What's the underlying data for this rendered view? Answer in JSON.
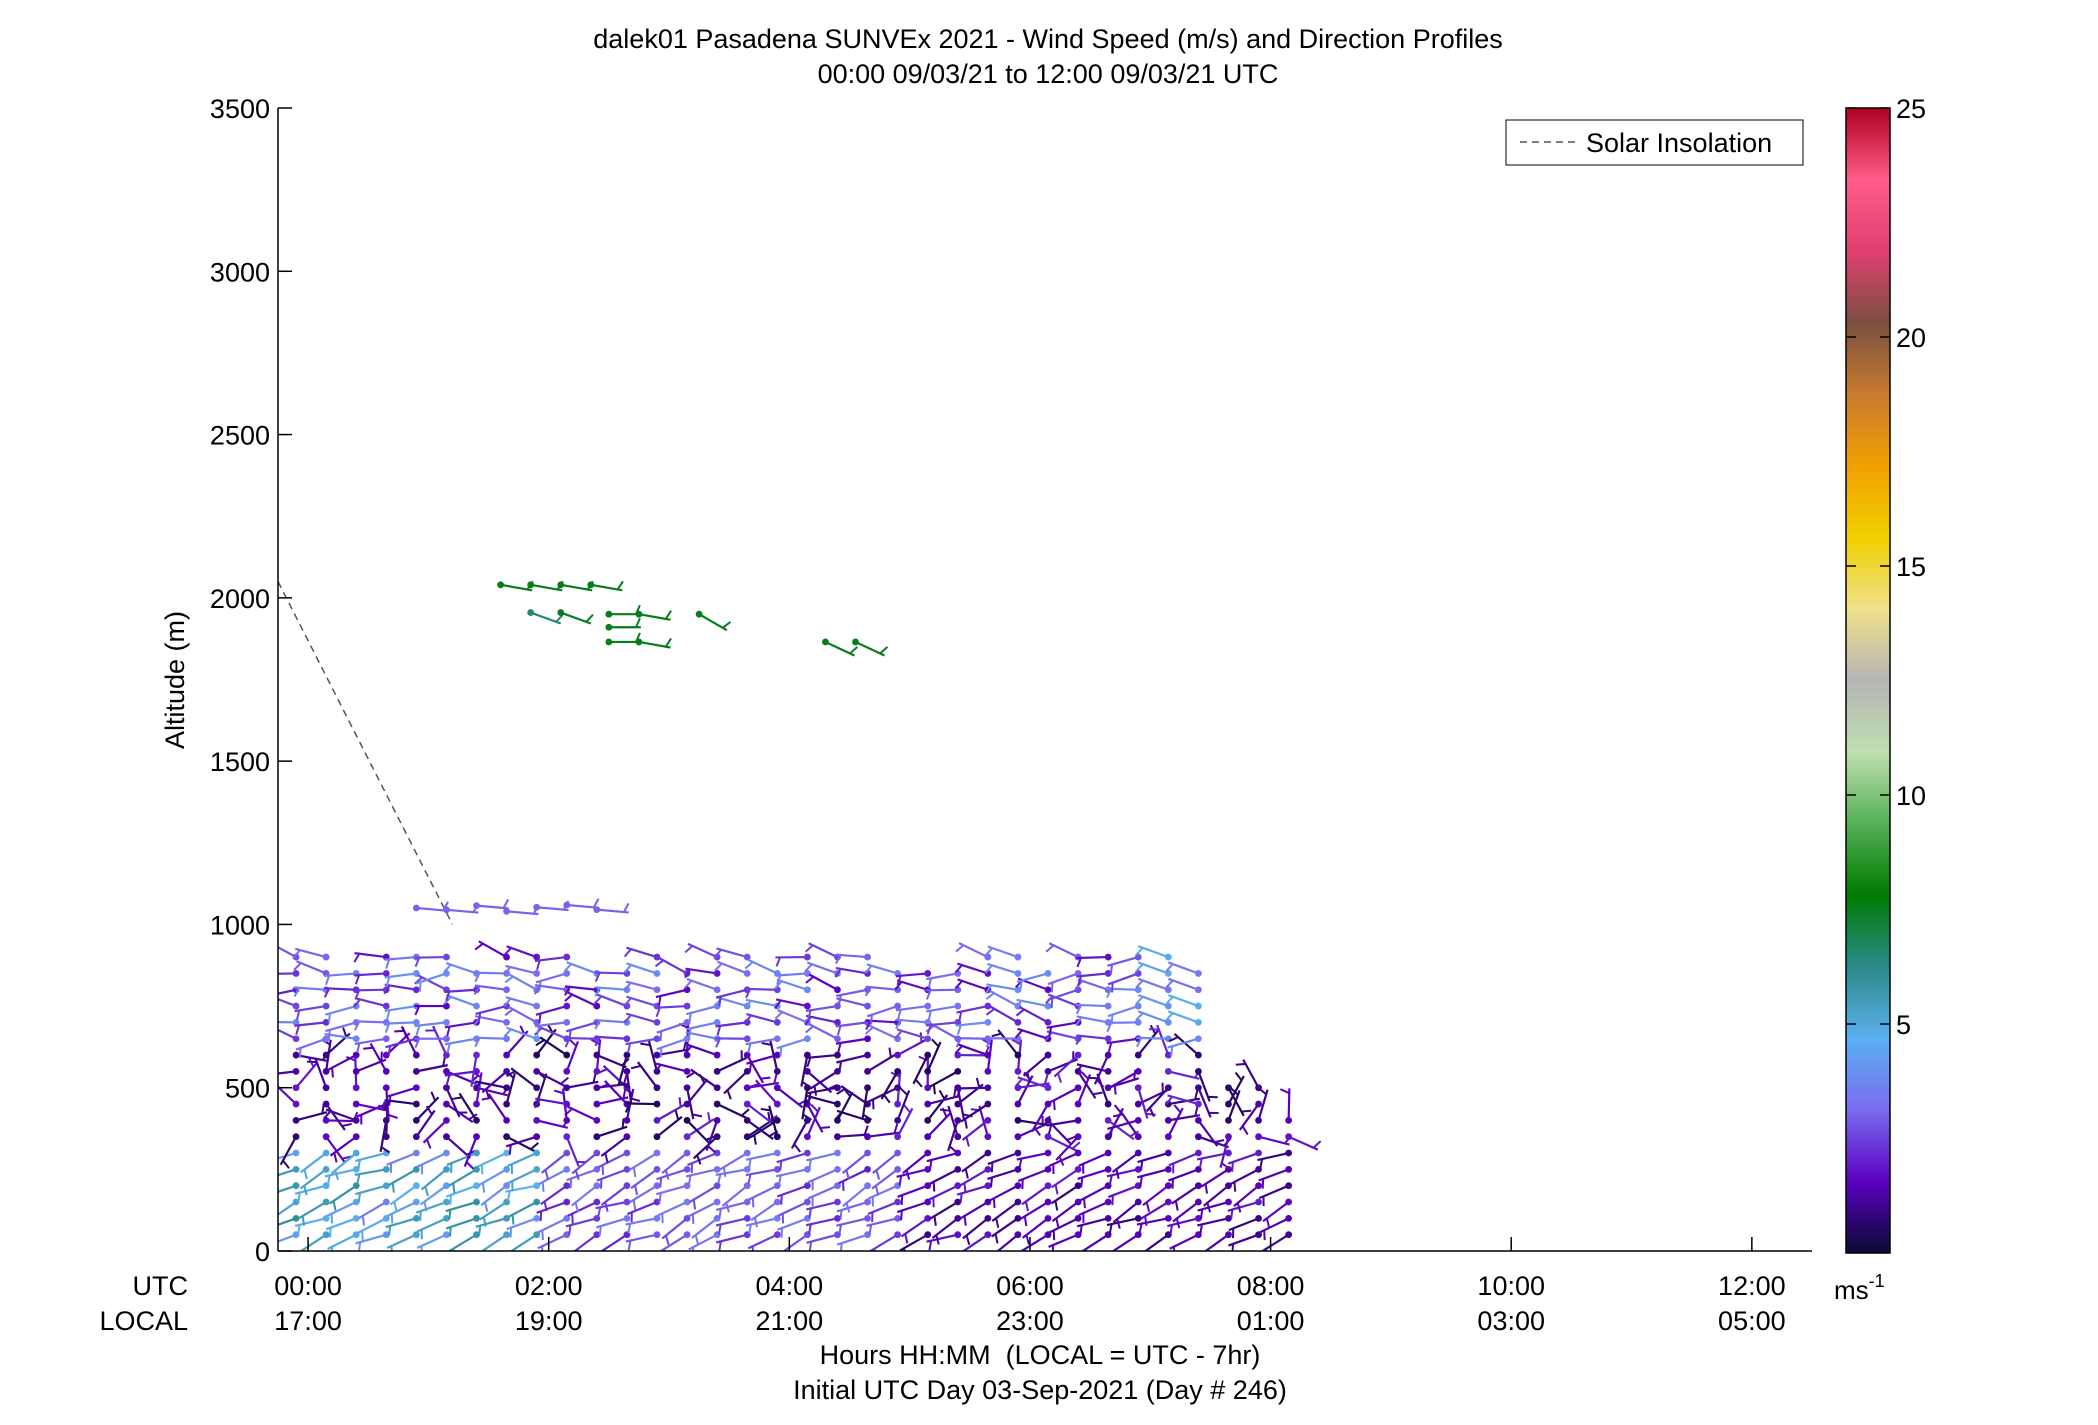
{
  "chart_data": {
    "type": "scatter",
    "subtype": "wind-barb-profile",
    "title": "dalek01 Pasadena SUNVEx 2021 - Wind Speed (m/s) and Direction Profiles",
    "subtitle": "00:00 09/03/21 to 12:00 09/03/21  UTC",
    "ylabel": "Altitude (m)",
    "xlabel": "Hours HH:MM  (LOCAL = UTC - 7hr)",
    "xlabel2": "Initial UTC Day 03-Sep-2021 (Day # 246)",
    "ylim": [
      0,
      3500
    ],
    "xlim_hours": [
      -0.25,
      12.5
    ],
    "y_ticks": [
      "0",
      "500",
      "1000",
      "1500",
      "2000",
      "2500",
      "3000",
      "3500"
    ],
    "y_tick_values": [
      0,
      500,
      1000,
      1500,
      2000,
      2500,
      3000,
      3500
    ],
    "x_tick_hours": [
      0,
      2,
      4,
      6,
      8,
      10,
      12
    ],
    "x_ticks_utc": [
      "00:00",
      "02:00",
      "04:00",
      "06:00",
      "08:00",
      "10:00",
      "12:00"
    ],
    "x_ticks_local": [
      "17:00",
      "19:00",
      "21:00",
      "23:00",
      "01:00",
      "03:00",
      "05:00"
    ],
    "x_row_label_utc": "UTC",
    "x_row_label_local": "LOCAL",
    "legend": {
      "label": "Solar Insolation",
      "placement": "top-right",
      "line_color": "#555555"
    },
    "solar_insolation": {
      "x_hours": [
        -0.25,
        1.2
      ],
      "y": [
        2050,
        1000
      ]
    },
    "colorbar": {
      "min": 0,
      "max": 25,
      "ticks": [
        "5",
        "10",
        "15",
        "20",
        "25"
      ],
      "tick_values": [
        5,
        10,
        15,
        20,
        25
      ],
      "unit": "ms",
      "unit_sup": "-1",
      "stops": [
        "#0a0a35",
        "#5a00c0",
        "#7b6cf0",
        "#5ab0f0",
        "#2a8a8a",
        "#007a00",
        "#55b055",
        "#bfe0b0",
        "#b5b5b5",
        "#f0e08a",
        "#f0d000",
        "#f0a000",
        "#c87a30",
        "#7a5040",
        "#e04070",
        "#ff5c8a",
        "#b00020"
      ]
    },
    "upper_barbs": [
      {
        "t": 1.6,
        "z": 2040,
        "dir": 100,
        "ms": 7.5
      },
      {
        "t": 1.85,
        "z": 2040,
        "dir": 100,
        "ms": 7.5
      },
      {
        "t": 2.1,
        "z": 2040,
        "dir": 100,
        "ms": 7.5
      },
      {
        "t": 2.35,
        "z": 2040,
        "dir": 100,
        "ms": 7.5
      },
      {
        "t": 1.85,
        "z": 1955,
        "dir": 110,
        "ms": 6.5
      },
      {
        "t": 2.1,
        "z": 1955,
        "dir": 110,
        "ms": 7.5
      },
      {
        "t": 2.5,
        "z": 1950,
        "dir": 90,
        "ms": 7.5
      },
      {
        "t": 2.75,
        "z": 1950,
        "dir": 100,
        "ms": 7.5
      },
      {
        "t": 2.5,
        "z": 1910,
        "dir": 90,
        "ms": 7.5
      },
      {
        "t": 2.5,
        "z": 1865,
        "dir": 90,
        "ms": 7.5
      },
      {
        "t": 2.75,
        "z": 1865,
        "dir": 100,
        "ms": 7.5
      },
      {
        "t": 3.25,
        "z": 1950,
        "dir": 120,
        "ms": 7.5
      },
      {
        "t": 4.3,
        "z": 1865,
        "dir": 115,
        "ms": 7.5
      },
      {
        "t": 4.55,
        "z": 1865,
        "dir": 115,
        "ms": 7.5
      }
    ]
  }
}
